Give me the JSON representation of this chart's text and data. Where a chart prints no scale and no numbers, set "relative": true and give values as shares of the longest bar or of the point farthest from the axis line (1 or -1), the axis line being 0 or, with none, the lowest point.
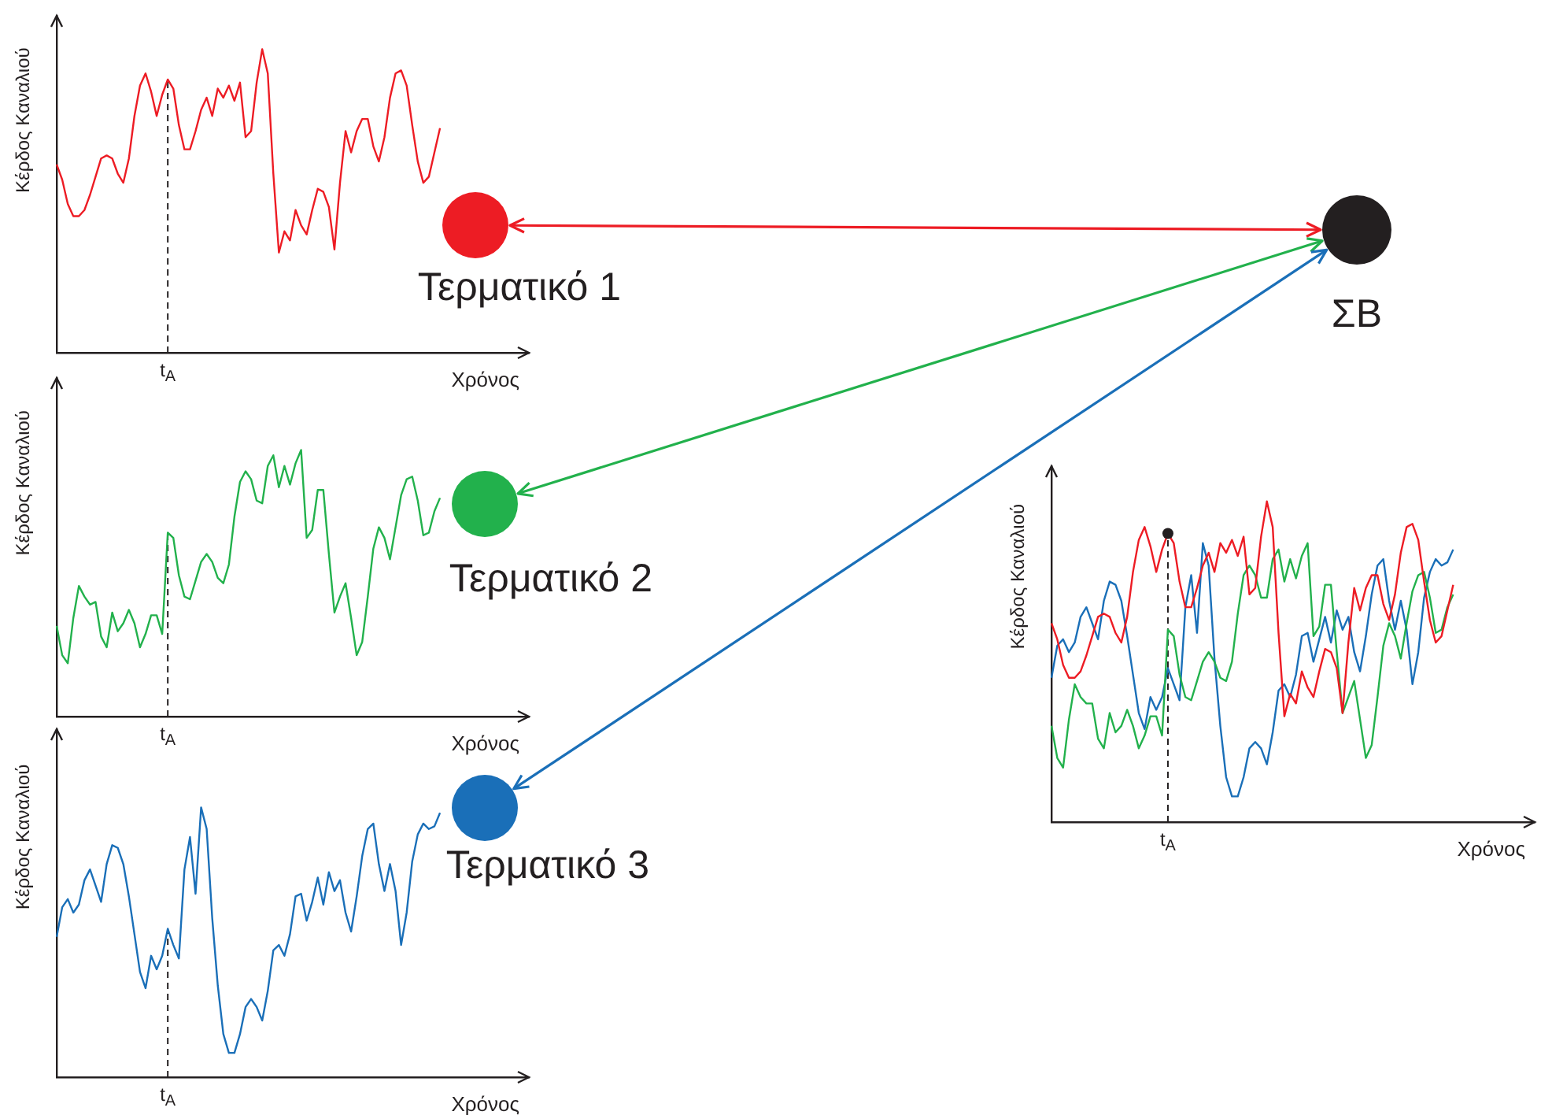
{
  "chart_data": [
    {
      "type": "line",
      "relative": true,
      "xlabel": "Χρόνος",
      "ylabel": "Κέρδος Καναλιού",
      "categories": [
        null,
        null,
        null,
        null,
        null,
        null,
        null,
        null,
        null,
        null,
        null,
        null,
        null,
        null,
        null,
        null,
        null,
        null,
        null,
        null,
        null,
        null,
        null,
        null,
        null,
        null,
        null,
        null,
        null,
        null,
        null,
        null,
        null,
        null,
        null,
        null,
        null,
        null,
        null,
        null,
        null,
        null,
        null,
        null,
        null,
        null,
        null,
        null,
        null,
        null,
        null,
        null,
        null,
        null,
        null,
        null,
        null,
        null,
        null,
        null,
        null,
        null,
        null,
        null,
        null,
        null,
        null,
        null,
        null,
        null,
        null,
        null,
        null,
        null,
        null,
        null,
        null,
        null,
        null,
        null,
        null,
        null,
        null,
        null,
        null,
        null
      ],
      "annotations": [
        "t$_{A}$"
      ],
      "series": [
        {
          "color": "#ed1c24",
          "values": [
            0.62,
            0.57,
            0.49,
            0.45,
            0.45,
            0.47,
            0.52,
            0.58,
            0.64,
            0.65,
            0.64,
            0.59,
            0.56,
            0.64,
            0.78,
            0.88,
            0.92,
            0.86,
            0.78,
            0.85,
            0.9,
            0.87,
            0.75,
            0.67,
            0.67,
            0.73,
            0.8,
            0.84,
            0.78,
            0.87,
            0.84,
            0.88,
            0.83,
            0.89,
            0.71,
            0.73,
            0.89,
            1,
            0.92,
            0.59,
            0.33,
            0.4,
            0.37,
            0.47,
            0.42,
            0.39,
            0.47,
            0.54,
            0.53,
            0.48,
            0.34,
            0.56,
            0.73,
            0.66,
            0.73,
            0.77,
            0.77,
            0.68,
            0.63,
            0.71,
            0.84,
            0.92,
            0.93,
            0.88,
            0.75,
            0.63,
            0.56,
            0.58,
            0.66,
            0.74,
            null,
            null,
            null,
            null,
            null,
            null,
            null,
            null,
            null,
            null,
            null,
            null,
            null,
            null,
            null,
            null
          ]
        }
      ]
    },
    {
      "type": "line",
      "relative": true,
      "xlabel": "Χρόνος",
      "ylabel": "Κέρδος Καναλιού",
      "categories": [
        null,
        null,
        null,
        null,
        null,
        null,
        null,
        null,
        null,
        null,
        null,
        null,
        null,
        null,
        null,
        null,
        null,
        null,
        null,
        null,
        null,
        null,
        null,
        null,
        null,
        null,
        null,
        null,
        null,
        null,
        null,
        null,
        null,
        null,
        null,
        null,
        null,
        null,
        null,
        null,
        null,
        null,
        null,
        null,
        null,
        null,
        null,
        null,
        null,
        null,
        null,
        null,
        null,
        null,
        null,
        null,
        null,
        null,
        null,
        null,
        null,
        null,
        null,
        null,
        null,
        null,
        null,
        null,
        null,
        null,
        null,
        null,
        null,
        null,
        null,
        null,
        null,
        null,
        null,
        null,
        null,
        null,
        null,
        null,
        null,
        null
      ],
      "annotations": [
        "t$_{A}$"
      ],
      "series": [
        {
          "color": "#22b14c",
          "values": [
            0.34,
            0.23,
            0.2,
            0.37,
            0.49,
            0.45,
            0.42,
            0.43,
            0.3,
            0.26,
            0.39,
            0.32,
            0.35,
            0.4,
            0.35,
            0.26,
            0.31,
            0.38,
            0.38,
            0.31,
            0.69,
            0.67,
            0.53,
            0.45,
            0.44,
            0.51,
            0.58,
            0.61,
            0.58,
            0.52,
            0.5,
            0.57,
            0.75,
            0.88,
            0.92,
            0.89,
            0.81,
            0.8,
            0.94,
            0.98,
            0.86,
            0.94,
            0.87,
            0.95,
            1,
            0.67,
            0.7,
            0.85,
            0.85,
            0.61,
            0.39,
            0.45,
            0.5,
            0.37,
            0.23,
            0.28,
            0.45,
            0.63,
            0.71,
            0.67,
            0.59,
            0.71,
            0.83,
            0.89,
            0.9,
            0.81,
            0.68,
            0.69,
            0.77,
            0.82,
            null,
            null,
            null,
            null,
            null,
            null,
            null,
            null,
            null,
            null,
            null,
            null,
            null,
            null,
            null,
            null
          ]
        }
      ]
    },
    {
      "type": "line",
      "relative": true,
      "xlabel": "Χρόνος",
      "ylabel": "Κέρδος Καναλιού",
      "categories": [
        null,
        null,
        null,
        null,
        null,
        null,
        null,
        null,
        null,
        null,
        null,
        null,
        null,
        null,
        null,
        null,
        null,
        null,
        null,
        null,
        null,
        null,
        null,
        null,
        null,
        null,
        null,
        null,
        null,
        null,
        null,
        null,
        null,
        null,
        null,
        null,
        null,
        null,
        null,
        null,
        null,
        null,
        null,
        null,
        null,
        null,
        null,
        null,
        null,
        null,
        null,
        null,
        null,
        null,
        null,
        null,
        null,
        null,
        null,
        null,
        null,
        null,
        null,
        null,
        null,
        null,
        null,
        null,
        null,
        null,
        null,
        null,
        null,
        null,
        null,
        null,
        null,
        null,
        null,
        null,
        null,
        null,
        null,
        null,
        null,
        null
      ],
      "annotations": [
        "t$_{A}$"
      ],
      "series": [
        {
          "color": "#1a6fb8",
          "values": [
            0.52,
            0.63,
            0.66,
            0.61,
            0.64,
            0.73,
            0.77,
            0.71,
            0.65,
            0.79,
            0.86,
            0.85,
            0.79,
            0.67,
            0.53,
            0.39,
            0.33,
            0.45,
            0.4,
            0.45,
            0.55,
            0.49,
            0.44,
            0.77,
            0.89,
            0.68,
            1,
            0.92,
            0.59,
            0.34,
            0.16,
            0.09,
            0.09,
            0.16,
            0.26,
            0.29,
            0.26,
            0.21,
            0.32,
            0.47,
            0.49,
            0.45,
            0.53,
            0.67,
            0.68,
            0.58,
            0.65,
            0.74,
            0.64,
            0.76,
            0.69,
            0.73,
            0.61,
            0.54,
            0.67,
            0.82,
            0.92,
            0.94,
            0.79,
            0.69,
            0.79,
            0.69,
            0.49,
            0.61,
            0.8,
            0.9,
            0.94,
            0.92,
            0.93,
            0.98,
            null,
            null,
            null,
            null,
            null,
            null,
            null,
            null,
            null,
            null,
            null,
            null,
            null,
            null,
            null,
            null
          ]
        }
      ]
    },
    {
      "type": "line",
      "relative": true,
      "xlabel": "Χρόνος",
      "ylabel": "Κέρδος Καναλιού",
      "categories": [
        null,
        null,
        null,
        null,
        null,
        null,
        null,
        null,
        null,
        null,
        null,
        null,
        null,
        null,
        null,
        null,
        null,
        null,
        null,
        null,
        null,
        null,
        null,
        null,
        null,
        null,
        null,
        null,
        null,
        null,
        null,
        null,
        null,
        null,
        null,
        null,
        null,
        null,
        null,
        null,
        null,
        null,
        null,
        null,
        null,
        null,
        null,
        null,
        null,
        null,
        null,
        null,
        null,
        null,
        null,
        null,
        null,
        null,
        null,
        null,
        null,
        null,
        null,
        null,
        null,
        null,
        null,
        null,
        null,
        null,
        null,
        null,
        null,
        null,
        null,
        null,
        null,
        null,
        null,
        null,
        null,
        null,
        null,
        null
      ],
      "annotations": [
        "t$_{A}$"
      ],
      "series": [
        {
          "color": "#1a6fb8",
          "values": [
            0.45,
            0.55,
            0.57,
            0.53,
            0.56,
            0.64,
            0.67,
            0.62,
            0.57,
            0.69,
            0.75,
            0.74,
            0.69,
            0.58,
            0.46,
            0.34,
            0.29,
            0.39,
            0.35,
            0.39,
            0.48,
            0.43,
            0.38,
            0.67,
            0.77,
            0.59,
            0.87,
            0.8,
            0.51,
            0.3,
            0.14,
            0.08,
            0.08,
            0.14,
            0.23,
            0.25,
            0.23,
            0.18,
            0.28,
            0.41,
            0.43,
            0.39,
            0.46,
            0.58,
            0.59,
            0.5,
            0.57,
            0.64,
            0.56,
            0.66,
            0.6,
            0.64,
            0.53,
            0.47,
            0.58,
            0.71,
            0.8,
            0.82,
            0.69,
            0.6,
            0.69,
            0.6,
            0.43,
            0.53,
            0.7,
            0.78,
            0.82,
            0.8,
            0.81,
            0.85,
            null,
            null,
            null,
            null,
            null,
            null,
            null,
            null,
            null,
            null,
            null,
            null,
            null,
            null
          ]
        },
        {
          "color": "#22b14c",
          "values": [
            0.3,
            0.2,
            0.17,
            0.32,
            0.43,
            0.39,
            0.37,
            0.37,
            0.26,
            0.23,
            0.34,
            0.28,
            0.3,
            0.35,
            0.3,
            0.23,
            0.27,
            0.33,
            0.33,
            0.27,
            0.6,
            0.58,
            0.46,
            0.39,
            0.38,
            0.44,
            0.5,
            0.53,
            0.5,
            0.45,
            0.44,
            0.5,
            0.65,
            0.77,
            0.8,
            0.77,
            0.7,
            0.7,
            0.82,
            0.85,
            0.75,
            0.82,
            0.76,
            0.83,
            0.87,
            0.58,
            0.61,
            0.74,
            0.74,
            0.53,
            0.34,
            0.39,
            0.44,
            0.32,
            0.2,
            0.24,
            0.39,
            0.55,
            0.62,
            0.58,
            0.51,
            0.62,
            0.72,
            0.77,
            0.78,
            0.7,
            0.59,
            0.6,
            0.67,
            0.71,
            null,
            null,
            null,
            null,
            null,
            null,
            null,
            null,
            null,
            null,
            null,
            null,
            null,
            null
          ]
        },
        {
          "color": "#ed1c24",
          "values": [
            0.62,
            0.57,
            0.49,
            0.45,
            0.45,
            0.47,
            0.52,
            0.58,
            0.64,
            0.65,
            0.64,
            0.59,
            0.56,
            0.64,
            0.78,
            0.88,
            0.92,
            0.86,
            0.78,
            0.85,
            0.9,
            0.87,
            0.75,
            0.67,
            0.67,
            0.73,
            0.8,
            0.84,
            0.78,
            0.87,
            0.84,
            0.88,
            0.83,
            0.89,
            0.71,
            0.73,
            0.89,
            1,
            0.92,
            0.59,
            0.33,
            0.4,
            0.37,
            0.47,
            0.42,
            0.39,
            0.47,
            0.54,
            0.53,
            0.48,
            0.34,
            0.56,
            0.73,
            0.66,
            0.73,
            0.77,
            0.77,
            0.68,
            0.63,
            0.71,
            0.84,
            0.92,
            0.93,
            0.88,
            0.75,
            0.63,
            0.56,
            0.58,
            0.66,
            0.74,
            null,
            null,
            null,
            null,
            null,
            null,
            null,
            null,
            null,
            null,
            null,
            null,
            null,
            null
          ]
        }
      ]
    },
    {
      "type": "other",
      "annotations": [
        "Τερματικό 1",
        "Τερματικό 2",
        "Τερματικό 3",
        "ΣΒ"
      ]
    }
  ]
}
